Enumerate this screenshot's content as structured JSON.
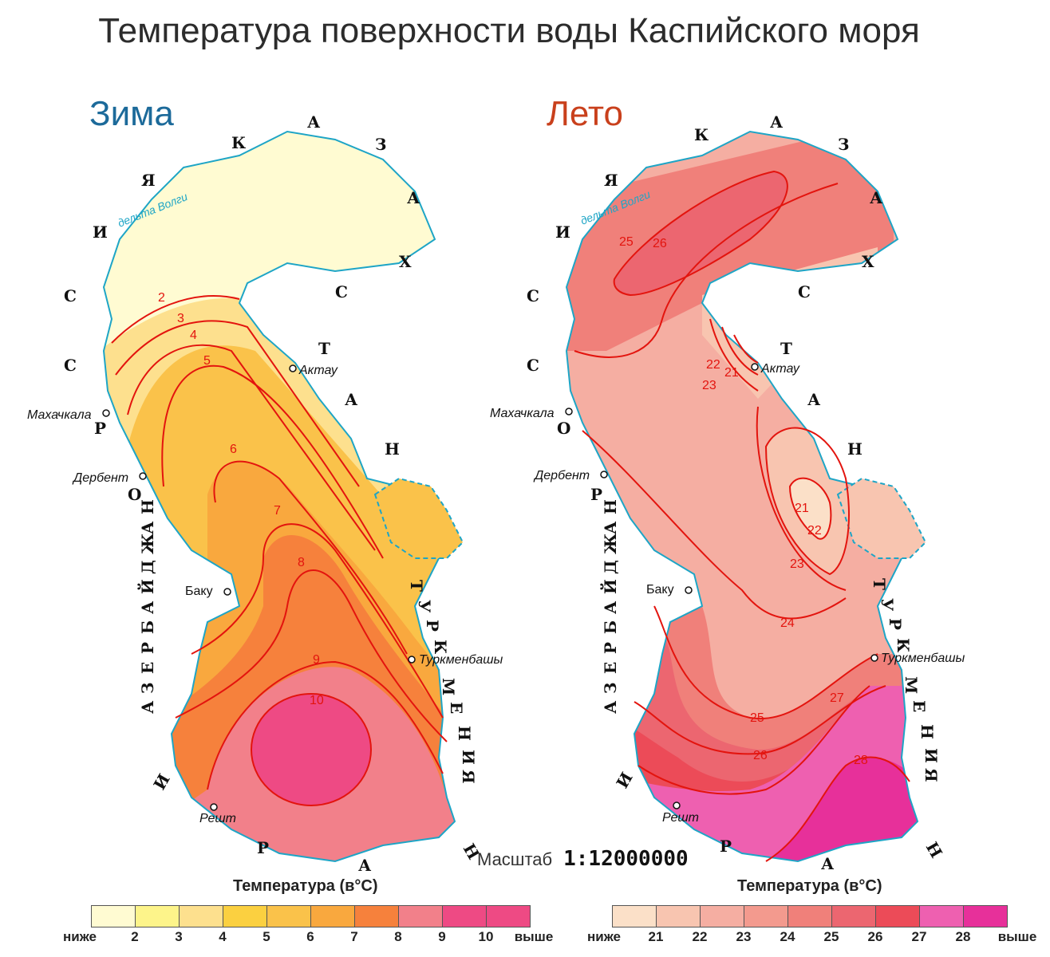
{
  "title": "Температура поверхности воды Каспийского моря",
  "winter": {
    "label": "Зима",
    "legend_title": "Температура (в°С)",
    "legend_low": "ниже",
    "legend_high": "выше",
    "ticks": [
      "2",
      "3",
      "4",
      "5",
      "6",
      "7",
      "8",
      "9",
      "10"
    ],
    "colors": [
      "#fffbd2",
      "#fdf48a",
      "#fde08e",
      "#fbd040",
      "#fac24a",
      "#f9a83e",
      "#f6813c",
      "#f2808a",
      "#ee4a84"
    ],
    "isotherms": [
      "2",
      "3",
      "4",
      "5",
      "6",
      "7",
      "8",
      "9",
      "10"
    ]
  },
  "summer": {
    "label": "Лето",
    "legend_title": "Температура (в°С)",
    "legend_low": "ниже",
    "legend_high": "выше",
    "ticks": [
      "21",
      "22",
      "23",
      "24",
      "25",
      "26",
      "27",
      "28"
    ],
    "colors": [
      "#fbe0c8",
      "#f8c5b0",
      "#f5aea2",
      "#f39a8e",
      "#f0807a",
      "#ec6670",
      "#ec4b58",
      "#ee60b0",
      "#e7309a"
    ],
    "isotherms": [
      "21",
      "22",
      "23",
      "24",
      "25",
      "26",
      "27",
      "28"
    ]
  },
  "scale": {
    "label": "Масштаб",
    "value": "1:12000000"
  },
  "cities": {
    "makhachkala": "Махачкала",
    "derbent": "Дербент",
    "baku": "Баку",
    "aktau": "Актау",
    "turkmenbashi": "Туркменбашы",
    "resht": "Решт"
  },
  "delta": "дельта Волги",
  "countries": {
    "russia": [
      "Р",
      "О",
      "С",
      "С",
      "И",
      "Я"
    ],
    "kazakhstan": [
      "К",
      "А",
      "З",
      "А",
      "Х",
      "С",
      "Т",
      "А",
      "Н"
    ],
    "azerbaijan": [
      "А",
      "З",
      "Е",
      "Р",
      "Б",
      "А",
      "Й",
      "Д",
      "Ж",
      "А",
      "Н"
    ],
    "turkmenistan": [
      "Т",
      "У",
      "Р",
      "К",
      "М",
      "Е",
      "Н",
      "И",
      "Я"
    ],
    "iran": [
      "И",
      "Р",
      "А",
      "Н"
    ]
  }
}
